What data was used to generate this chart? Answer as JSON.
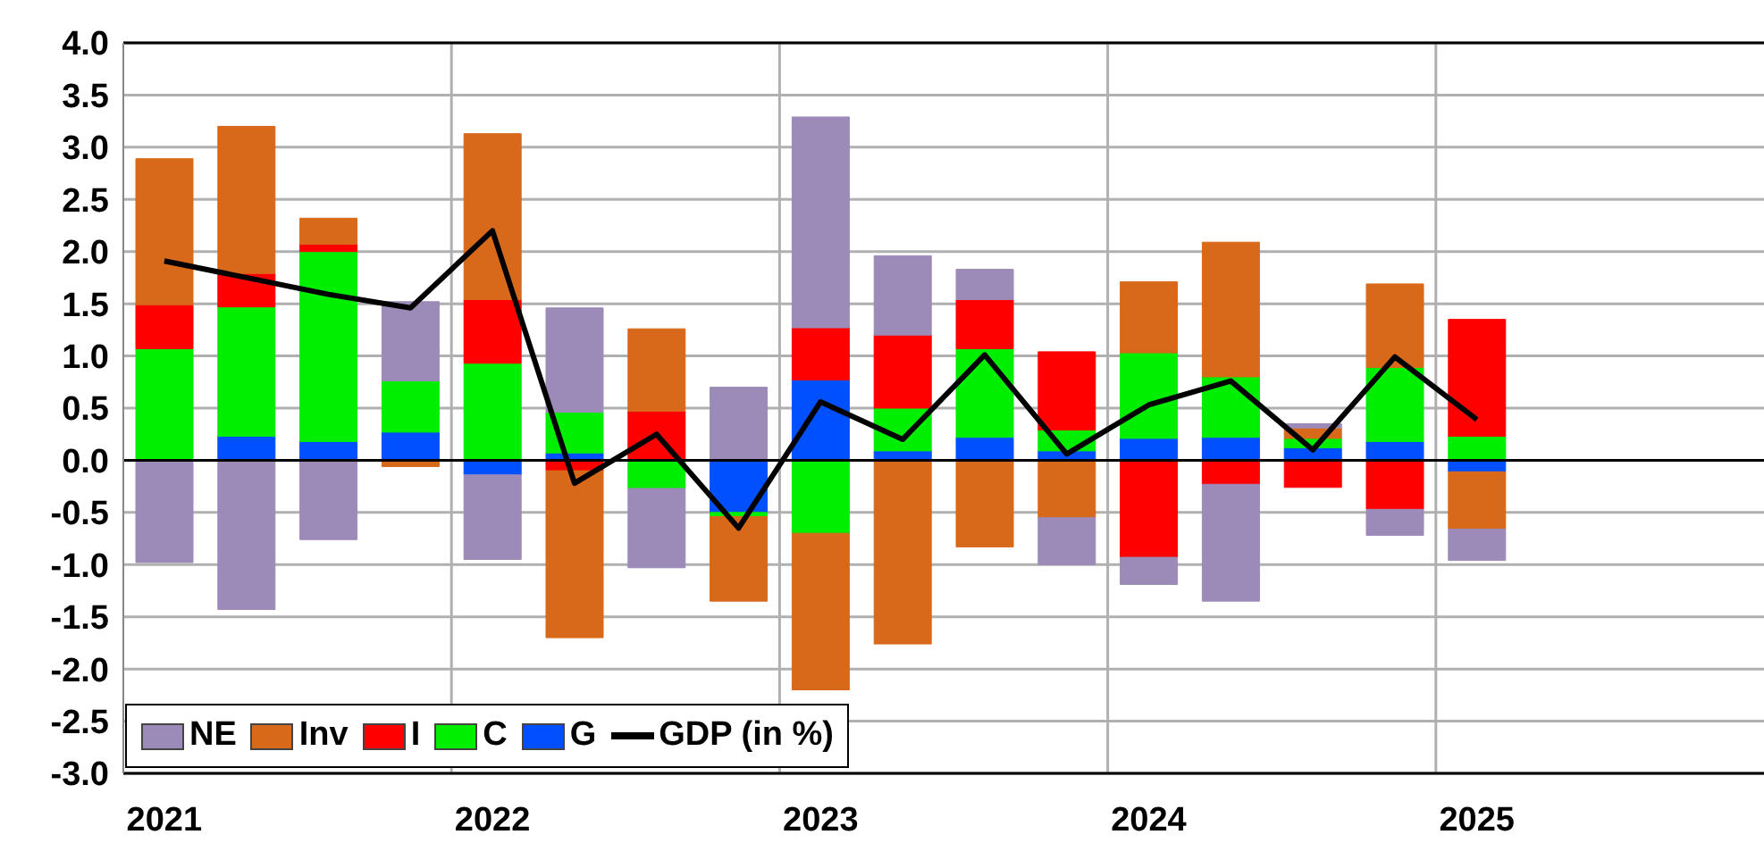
{
  "chart_data": {
    "type": "bar",
    "stacked": true,
    "categories": [
      "2021",
      null,
      null,
      null,
      "2022",
      null,
      null,
      null,
      "2023",
      null,
      null,
      null,
      "2024",
      null,
      null,
      null,
      "2025",
      null,
      null,
      null
    ],
    "series": [
      {
        "name": "G",
        "color": "#0050ff",
        "values": [
          0,
          0.23,
          0.18,
          0.27,
          -0.14,
          0.07,
          0,
          -0.5,
          0.77,
          0.09,
          0.22,
          0.09,
          0.21,
          0.22,
          0.12,
          0.18,
          -0.11,
          null,
          null,
          null
        ]
      },
      {
        "name": "C",
        "color": "#00ee00",
        "values": [
          1.07,
          1.24,
          1.82,
          0.49,
          0.93,
          0.39,
          -0.27,
          -0.04,
          -0.7,
          0.41,
          0.85,
          0.2,
          0.82,
          0.58,
          0.09,
          0.71,
          0.23,
          null,
          null,
          null
        ]
      },
      {
        "name": "I",
        "color": "#ff0000",
        "values": [
          0.42,
          0.32,
          0.07,
          0,
          0.61,
          -0.1,
          0.47,
          0,
          0.5,
          0.7,
          0.47,
          0.75,
          -0.93,
          -0.23,
          -0.26,
          -0.47,
          1.12,
          null,
          null,
          null
        ]
      },
      {
        "name": "Inv",
        "color": "#d9691a",
        "values": [
          1.4,
          1.41,
          0.25,
          -0.06,
          1.59,
          -1.6,
          0.79,
          -0.81,
          -1.5,
          -1.76,
          -0.83,
          -0.55,
          0.68,
          1.29,
          0.1,
          0.8,
          -0.55,
          null,
          null,
          null
        ]
      },
      {
        "name": "NE",
        "color": "#9c8ab8",
        "values": [
          -0.98,
          -1.43,
          -0.76,
          0.76,
          -0.81,
          1.0,
          -0.76,
          0.7,
          2.02,
          0.76,
          0.29,
          -0.45,
          -0.26,
          -1.12,
          0.04,
          -0.25,
          -0.3,
          null,
          null,
          null
        ]
      },
      {
        "name": "GDP (in %)",
        "type": "line",
        "color": "#000000",
        "values": [
          1.91,
          1.75,
          1.59,
          1.46,
          2.2,
          -0.22,
          0.25,
          -0.65,
          0.56,
          0.2,
          1.01,
          0.06,
          0.53,
          0.76,
          0.1,
          0.99,
          0.39,
          null,
          null,
          null
        ]
      }
    ],
    "ylim": [
      -3,
      4
    ],
    "yticks": [
      {
        "value": -3,
        "label": "-3.0"
      },
      {
        "value": -2.5,
        "label": "-2.5"
      },
      {
        "value": -2,
        "label": "-2.0"
      },
      {
        "value": -1.5,
        "label": "-1.5"
      },
      {
        "value": -1,
        "label": "-1.0"
      },
      {
        "value": -0.5,
        "label": "-0.5"
      },
      {
        "value": 0,
        "label": "0.0"
      },
      {
        "value": 0.5,
        "label": "0.5"
      },
      {
        "value": 1,
        "label": "1.0"
      },
      {
        "value": 1.5,
        "label": "1.5"
      },
      {
        "value": 2,
        "label": "2.0"
      },
      {
        "value": 2.5,
        "label": "2.5"
      },
      {
        "value": 3,
        "label": "3.0"
      },
      {
        "value": 3.5,
        "label": "3.5"
      },
      {
        "value": 4,
        "label": "4.0"
      }
    ],
    "ref_lines": [
      {
        "axis": "y",
        "value": 0,
        "color": "#000000"
      }
    ],
    "grid": true,
    "legend": "bottom left",
    "marker": "none",
    "line_style": "solid"
  }
}
